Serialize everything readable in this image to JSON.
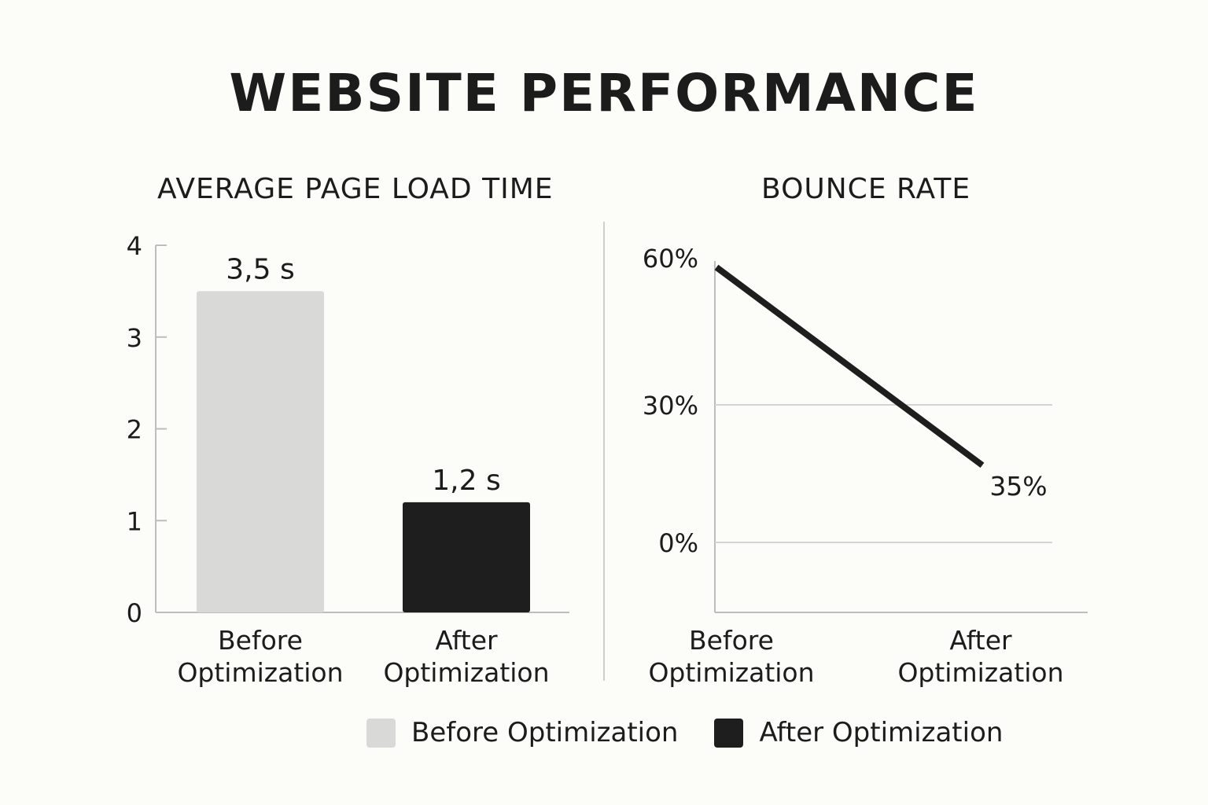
{
  "title": "WEBSITE PERFORMANCE",
  "colors": {
    "before": "#d9d9d7",
    "after": "#1e1e1e",
    "axis": "#bdbdbd",
    "background": "#fcfcf8"
  },
  "legend": {
    "before_label": "Before Optimization",
    "after_label": "After Optimization"
  },
  "chart_data": [
    {
      "type": "bar",
      "title": "AVERAGE PAGE LOAD TIME",
      "categories": [
        [
          "Before",
          "Optimization"
        ],
        [
          "After",
          "Optimization"
        ]
      ],
      "values": [
        3.5,
        1.2
      ],
      "data_labels": [
        "3,5 s",
        "1,2 s"
      ],
      "yticks": [
        "0",
        "1",
        "2",
        "3",
        "4"
      ],
      "ylim": [
        0,
        4
      ],
      "grid": false
    },
    {
      "type": "line",
      "title": "BOUNCE RATE",
      "categories": [
        [
          "Before",
          "Optimization"
        ],
        [
          "After",
          "Optimization"
        ]
      ],
      "values": [
        60,
        35
      ],
      "data_labels": [
        "35%"
      ],
      "yticks": [
        "0%",
        "30%",
        "60%"
      ],
      "tick_values": [
        0,
        30,
        60
      ],
      "grid": true
    }
  ]
}
